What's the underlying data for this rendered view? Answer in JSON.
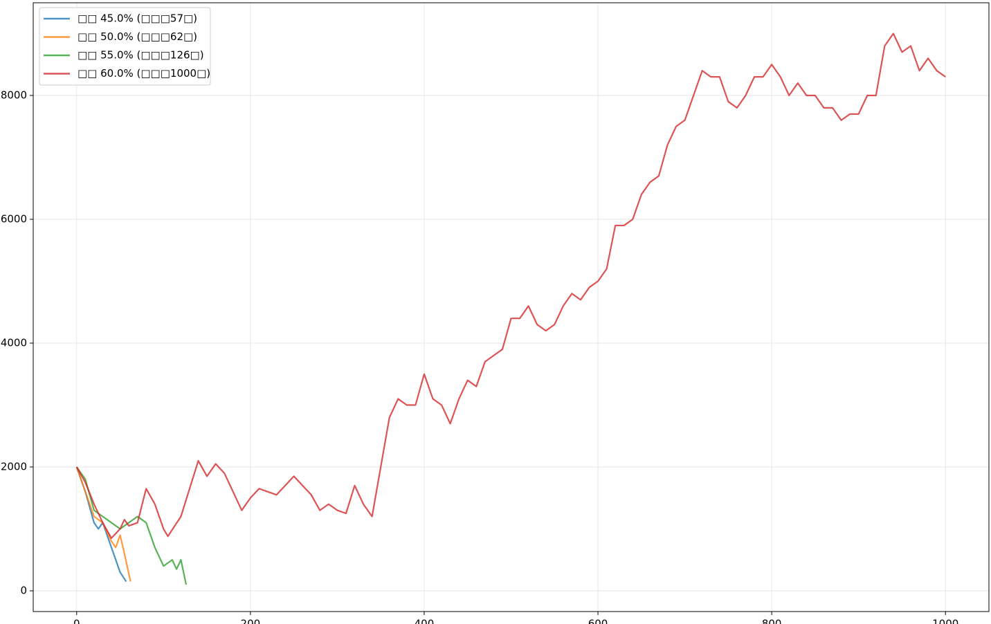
{
  "chart_data": {
    "type": "line",
    "series": [
      {
        "name": "□□ 45.0% (□□□57□)",
        "color": "#1f77b4",
        "x": [
          0,
          10,
          20,
          25,
          30,
          40,
          50,
          57
        ],
        "values": [
          2000,
          1600,
          1100,
          1000,
          1100,
          700,
          300,
          150
        ]
      },
      {
        "name": "□□ 50.0% (□□□62□)",
        "color": "#ff7f0e",
        "x": [
          0,
          10,
          20,
          30,
          40,
          45,
          50,
          55,
          62
        ],
        "values": [
          2000,
          1600,
          1200,
          1100,
          800,
          700,
          900,
          600,
          150
        ]
      },
      {
        "name": "□□ 55.0% (□□□126□)",
        "color": "#2ca02c",
        "x": [
          0,
          10,
          20,
          30,
          40,
          50,
          60,
          70,
          80,
          90,
          100,
          110,
          115,
          120,
          126
        ],
        "values": [
          2000,
          1800,
          1300,
          1200,
          1100,
          1000,
          1100,
          1200,
          1100,
          700,
          400,
          500,
          350,
          500,
          100
        ]
      },
      {
        "name": "□□ 60.0% (□□□1000□)",
        "color": "#d62728",
        "x": [
          0,
          10,
          20,
          30,
          40,
          50,
          55,
          60,
          70,
          80,
          90,
          100,
          105,
          120,
          130,
          140,
          150,
          160,
          170,
          180,
          190,
          200,
          210,
          220,
          230,
          240,
          250,
          260,
          270,
          280,
          290,
          300,
          310,
          320,
          330,
          340,
          350,
          360,
          370,
          380,
          390,
          400,
          410,
          420,
          430,
          440,
          450,
          460,
          470,
          480,
          490,
          500,
          510,
          520,
          530,
          540,
          550,
          560,
          570,
          580,
          590,
          600,
          610,
          620,
          630,
          640,
          650,
          660,
          670,
          680,
          690,
          700,
          710,
          720,
          730,
          740,
          750,
          760,
          770,
          780,
          790,
          800,
          810,
          820,
          830,
          840,
          850,
          860,
          870,
          880,
          890,
          900,
          910,
          920,
          930,
          940,
          950,
          960,
          970,
          980,
          990,
          1000
        ],
        "values": [
          2000,
          1750,
          1400,
          1100,
          850,
          1000,
          1150,
          1050,
          1100,
          1650,
          1400,
          1000,
          880,
          1200,
          1650,
          2100,
          1850,
          2050,
          1900,
          1600,
          1300,
          1500,
          1650,
          1600,
          1550,
          1700,
          1850,
          1700,
          1550,
          1300,
          1400,
          1300,
          1250,
          1700,
          1400,
          1200,
          2000,
          2800,
          3100,
          3000,
          3000,
          3500,
          3100,
          3000,
          2700,
          3100,
          3400,
          3300,
          3700,
          3800,
          3900,
          4400,
          4400,
          4600,
          4300,
          4200,
          4300,
          4600,
          4800,
          4700,
          4900,
          5000,
          5200,
          5900,
          5900,
          6000,
          6400,
          6600,
          6700,
          7200,
          7500,
          7600,
          8000,
          8400,
          8300,
          8300,
          7900,
          7800,
          8000,
          8300,
          8300,
          8500,
          8300,
          8000,
          8200,
          8000,
          8000,
          7800,
          7800,
          7600,
          7700,
          7700,
          8000,
          8000,
          8800,
          9000,
          8700,
          8800,
          8400,
          8600,
          8400,
          8300
        ]
      }
    ],
    "xlim": [
      -50,
      1050
    ],
    "xticks": [
      0,
      200,
      400,
      600,
      800,
      1000
    ],
    "ylim": [
      -335,
      9497
    ],
    "yticks": [
      0,
      2000,
      4000,
      6000,
      8000
    ],
    "grid": true,
    "legend": "upper left"
  }
}
